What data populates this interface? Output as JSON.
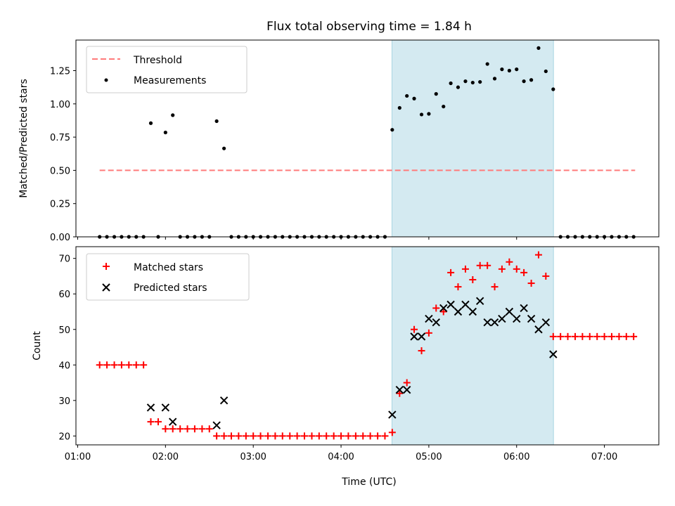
{
  "chart_data": {
    "title": "Flux total observing time = 1.84 h",
    "xlabel": "Time (UTC)",
    "x_unit": "hours (UTC)",
    "xlim": [
      0.98,
      7.62
    ],
    "x_ticks": [
      {
        "value": 1,
        "label": "01:00"
      },
      {
        "value": 2,
        "label": "02:00"
      },
      {
        "value": 3,
        "label": "03:00"
      },
      {
        "value": 4,
        "label": "04:00"
      },
      {
        "value": 5,
        "label": "05:00"
      },
      {
        "value": 6,
        "label": "06:00"
      },
      {
        "value": 7,
        "label": "07:00"
      }
    ],
    "highlight": {
      "x_start": 4.58,
      "x_end": 6.42,
      "color": "#d4eaf1",
      "edge": "#a9d5e2"
    },
    "panels": [
      {
        "type": "scatter",
        "ylabel": "Matched/Predicted stars",
        "ylim": [
          0,
          1.48
        ],
        "yticks": [
          0,
          0.25,
          0.5,
          0.75,
          1.0,
          1.25
        ],
        "ytick_labels": [
          "0.00",
          "0.25",
          "0.50",
          "0.75",
          "1.00",
          "1.25"
        ],
        "threshold": {
          "value": 0.5,
          "x_start": 1.25,
          "x_end": 7.35,
          "color": "#ff7b7b"
        },
        "legend": [
          "Threshold",
          "Measurements"
        ],
        "legend_loc": "upper left",
        "series": [
          {
            "name": "Measurements",
            "marker": "dot",
            "color": "#000000",
            "x": [
              1.25,
              1.333,
              1.417,
              1.5,
              1.583,
              1.667,
              1.75,
              1.833,
              1.917,
              2.0,
              2.083,
              2.167,
              2.25,
              2.333,
              2.417,
              2.5,
              2.583,
              2.667,
              2.75,
              2.833,
              2.917,
              3.0,
              3.083,
              3.167,
              3.25,
              3.333,
              3.417,
              3.5,
              3.583,
              3.667,
              3.75,
              3.833,
              3.917,
              4.0,
              4.083,
              4.167,
              4.25,
              4.333,
              4.417,
              4.5,
              4.583,
              4.667,
              4.75,
              4.833,
              4.917,
              5.0,
              5.083,
              5.167,
              5.25,
              5.333,
              5.417,
              5.5,
              5.583,
              5.667,
              5.75,
              5.833,
              5.917,
              6.0,
              6.083,
              6.167,
              6.25,
              6.333,
              6.417,
              6.5,
              6.583,
              6.667,
              6.75,
              6.833,
              6.917,
              7.0,
              7.083,
              7.167,
              7.25,
              7.333
            ],
            "y": [
              0,
              0,
              0,
              0,
              0,
              0,
              0,
              0.855,
              0,
              0.785,
              0.915,
              0,
              0,
              0,
              0,
              0,
              0.87,
              0.665,
              0,
              0,
              0,
              0,
              0,
              0,
              0,
              0,
              0,
              0,
              0,
              0,
              0,
              0,
              0,
              0,
              0,
              0,
              0,
              0,
              0,
              0,
              0.805,
              0.97,
              1.06,
              1.04,
              0.92,
              0.925,
              1.075,
              0.98,
              1.155,
              1.125,
              1.17,
              1.16,
              1.165,
              1.3,
              1.19,
              1.26,
              1.25,
              1.26,
              1.17,
              1.18,
              1.42,
              1.245,
              1.11,
              0,
              0,
              0,
              0,
              0,
              0,
              0,
              0,
              0,
              0,
              0
            ]
          }
        ]
      },
      {
        "type": "scatter",
        "ylabel": "Count",
        "ylim": [
          17.5,
          73.3
        ],
        "yticks": [
          20,
          30,
          40,
          50,
          60,
          70
        ],
        "ytick_labels": [
          "20",
          "30",
          "40",
          "50",
          "60",
          "70"
        ],
        "legend": [
          "Matched stars",
          "Predicted stars"
        ],
        "legend_loc": "upper left",
        "series": [
          {
            "name": "Matched stars",
            "marker": "plus",
            "color": "#ff0000",
            "x": [
              1.25,
              1.333,
              1.417,
              1.5,
              1.583,
              1.667,
              1.75,
              1.833,
              1.917,
              2.0,
              2.083,
              2.167,
              2.25,
              2.333,
              2.417,
              2.5,
              2.583,
              2.667,
              2.75,
              2.833,
              2.917,
              3.0,
              3.083,
              3.167,
              3.25,
              3.333,
              3.417,
              3.5,
              3.583,
              3.667,
              3.75,
              3.833,
              3.917,
              4.0,
              4.083,
              4.167,
              4.25,
              4.333,
              4.417,
              4.5,
              4.583,
              4.667,
              4.75,
              4.833,
              4.917,
              5.0,
              5.083,
              5.167,
              5.25,
              5.333,
              5.417,
              5.5,
              5.583,
              5.667,
              5.75,
              5.833,
              5.917,
              6.0,
              6.083,
              6.167,
              6.25,
              6.333,
              6.417,
              6.5,
              6.583,
              6.667,
              6.75,
              6.833,
              6.917,
              7.0,
              7.083,
              7.167,
              7.25,
              7.333
            ],
            "y": [
              40,
              40,
              40,
              40,
              40,
              40,
              40,
              24,
              24,
              22,
              22,
              22,
              22,
              22,
              22,
              22,
              20,
              20,
              20,
              20,
              20,
              20,
              20,
              20,
              20,
              20,
              20,
              20,
              20,
              20,
              20,
              20,
              20,
              20,
              20,
              20,
              20,
              20,
              20,
              20,
              21,
              32,
              35,
              50,
              44,
              49,
              56,
              55,
              66,
              62,
              67,
              64,
              68,
              68,
              62,
              67,
              69,
              67,
              66,
              63,
              71,
              65,
              48,
              48,
              48,
              48,
              48,
              48,
              48,
              48,
              48,
              48,
              48,
              48
            ]
          },
          {
            "name": "Predicted stars",
            "marker": "x",
            "color": "#000000",
            "x": [
              1.833,
              2.0,
              2.083,
              2.583,
              2.667,
              4.583,
              4.667,
              4.75,
              4.833,
              4.917,
              5.0,
              5.083,
              5.167,
              5.25,
              5.333,
              5.417,
              5.5,
              5.583,
              5.667,
              5.75,
              5.833,
              5.917,
              6.0,
              6.083,
              6.167,
              6.25,
              6.333,
              6.417
            ],
            "y": [
              28,
              28,
              24,
              23,
              30,
              26,
              33,
              33,
              48,
              48,
              53,
              52,
              56,
              57,
              55,
              57,
              55,
              58,
              52,
              52,
              53,
              55,
              53,
              56,
              53,
              50,
              52,
              43
            ]
          }
        ]
      }
    ]
  }
}
